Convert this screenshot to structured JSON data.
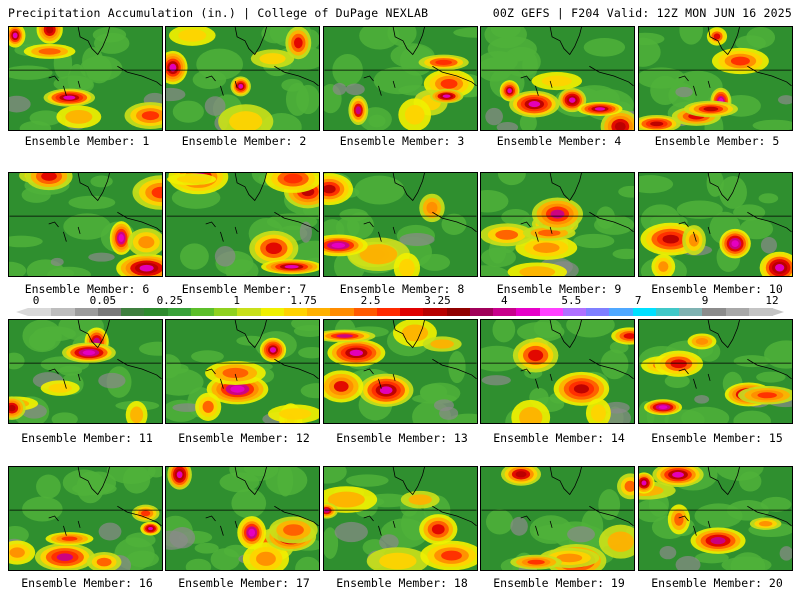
{
  "header": {
    "title_left": "Precipitation Accumulation (in.) | College of DuPage NEXLAB",
    "title_right": "00Z GEFS | F204 Valid: 12Z MON JUN 16 2025"
  },
  "panels": [
    {
      "caption": "Ensemble Member: 1"
    },
    {
      "caption": "Ensemble Member: 2"
    },
    {
      "caption": "Ensemble Member: 3"
    },
    {
      "caption": "Ensemble Member: 4"
    },
    {
      "caption": "Ensemble Member: 5"
    },
    {
      "caption": "Ensemble Member: 6"
    },
    {
      "caption": "Ensemble Member: 7"
    },
    {
      "caption": "Ensemble Member: 8"
    },
    {
      "caption": "Ensemble Member: 9"
    },
    {
      "caption": "Ensemble Member: 10"
    },
    {
      "caption": "Ensemble Member: 11"
    },
    {
      "caption": "Ensemble Member: 12"
    },
    {
      "caption": "Ensemble Member: 13"
    },
    {
      "caption": "Ensemble Member: 14"
    },
    {
      "caption": "Ensemble Member: 15"
    },
    {
      "caption": "Ensemble Member: 16"
    },
    {
      "caption": "Ensemble Member: 17"
    },
    {
      "caption": "Ensemble Member: 18"
    },
    {
      "caption": "Ensemble Member: 19"
    },
    {
      "caption": "Ensemble Member: 20"
    }
  ],
  "colorbar": {
    "labels": [
      "0",
      "0.05",
      "0.25",
      "1",
      "1.75",
      "2.5",
      "3.25",
      "4",
      "5.5",
      "7",
      "9",
      "12"
    ],
    "colors": [
      "#d9d9d9",
      "#bdbdbd",
      "#9c9c9c",
      "#7a7a7a",
      "#3f7f3f",
      "#2e8b2e",
      "#3aa23a",
      "#5cbf2a",
      "#8fd11f",
      "#c8e01a",
      "#f0f000",
      "#ffd200",
      "#ffb000",
      "#ff8c00",
      "#ff5a00",
      "#ff2a00",
      "#e00000",
      "#b80000",
      "#900000",
      "#a0005a",
      "#c8008c",
      "#e600c8",
      "#ff40ff",
      "#b070ff",
      "#7f7fff",
      "#4fa8ff",
      "#00e0ff",
      "#40c8c8",
      "#7fb2b2",
      "#8c8c8c",
      "#a8a8a8",
      "#c4c4c4"
    ]
  }
}
